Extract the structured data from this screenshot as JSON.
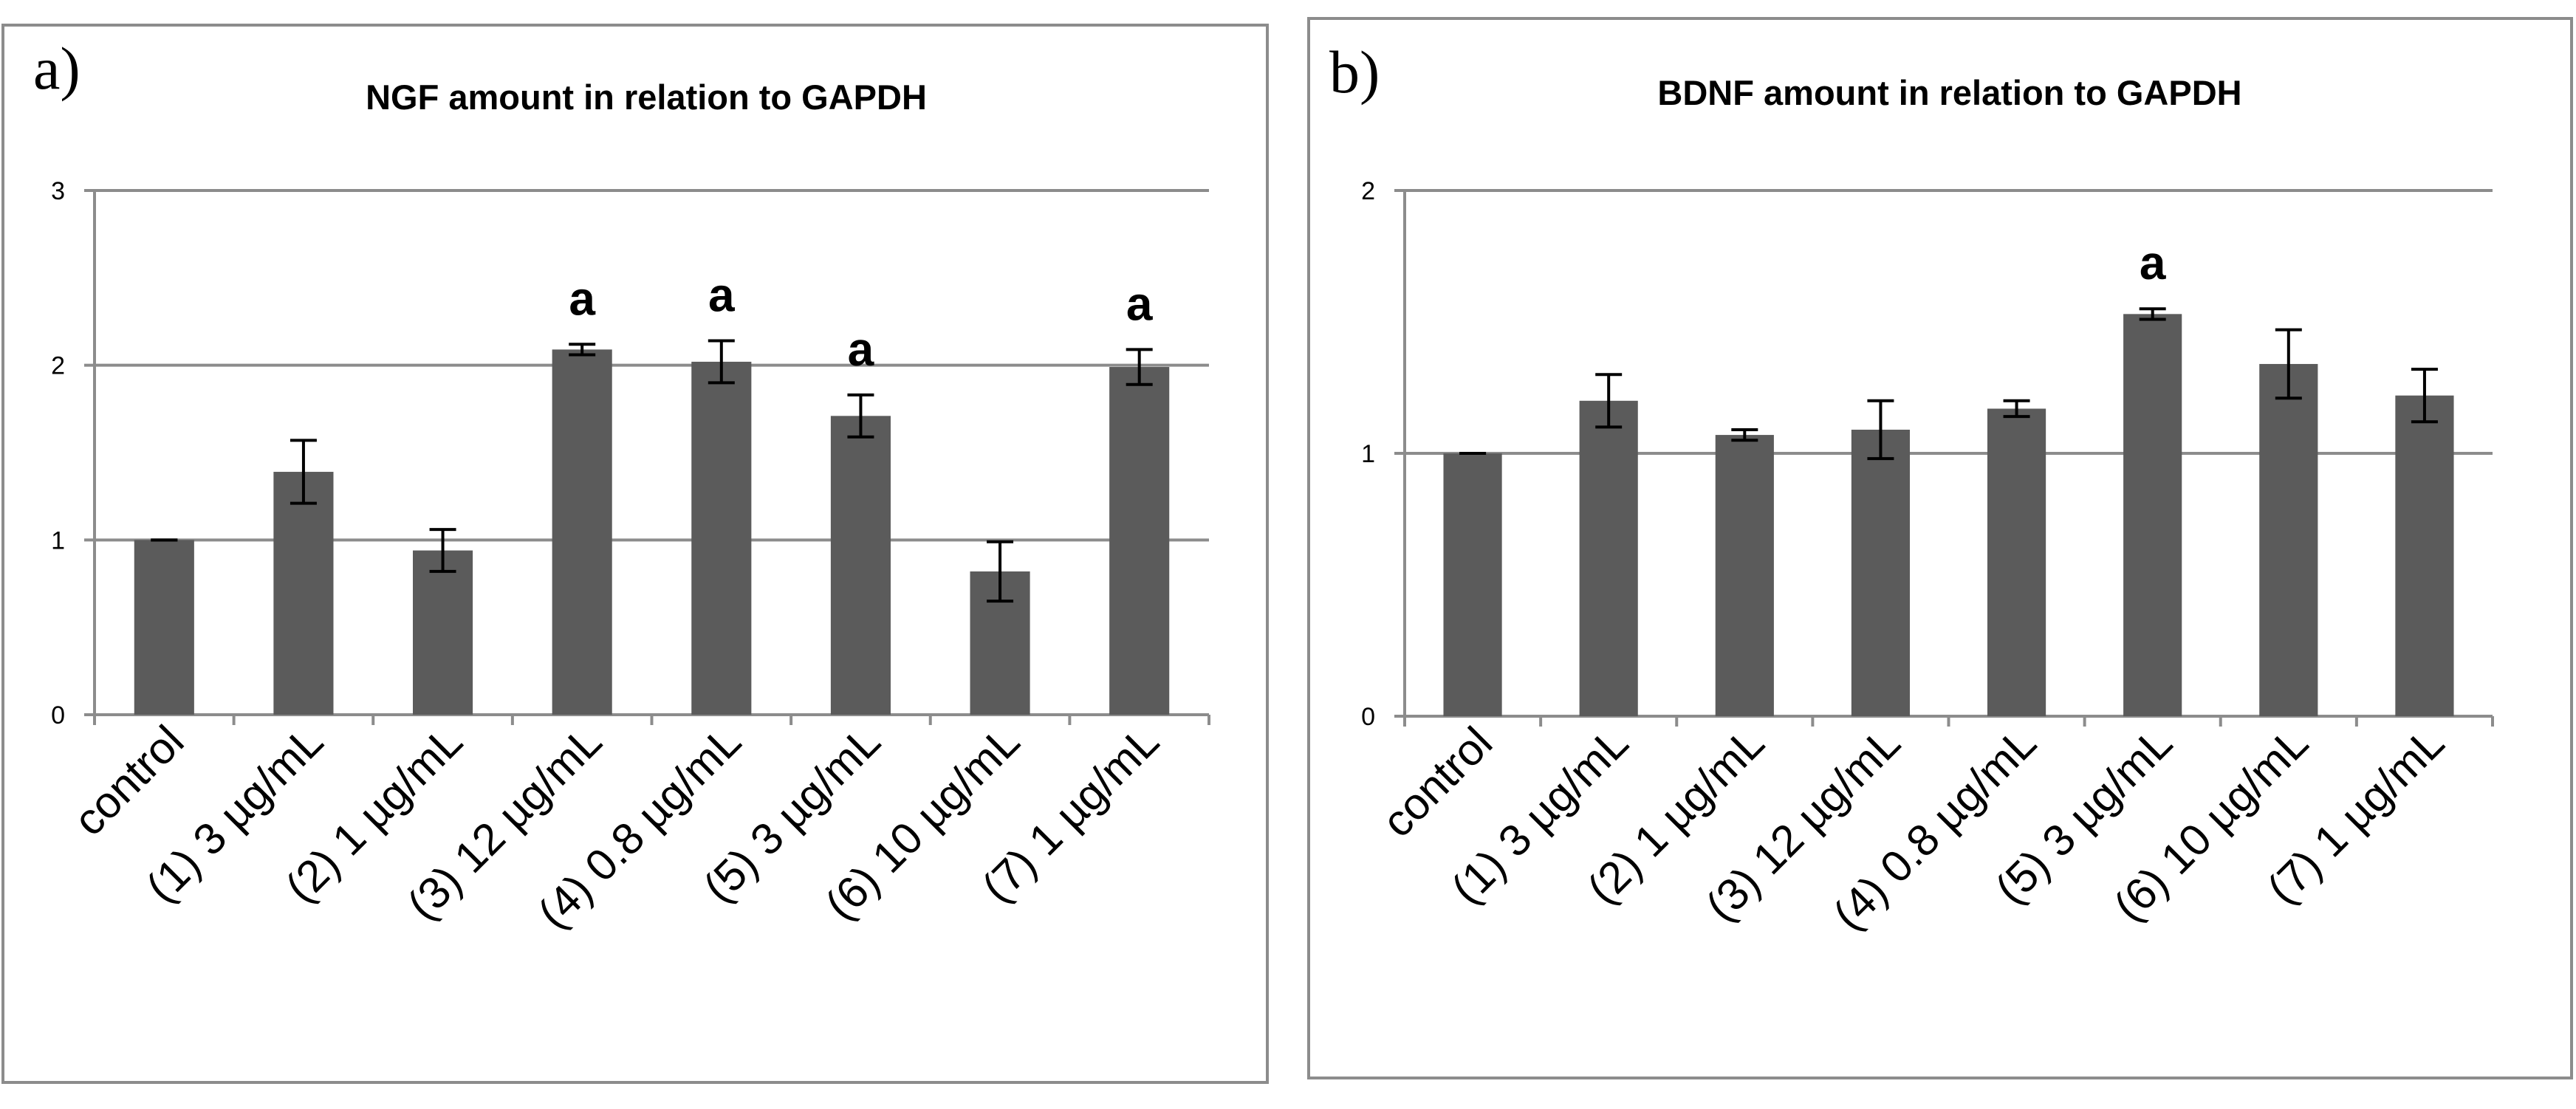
{
  "colors": {
    "bar": "#5b5b5b",
    "grid": "#8c8c8c",
    "frame": "#8c8c8c",
    "error_bar": "#000000"
  },
  "chart_data": [
    {
      "type": "bar",
      "panel_label": "a)",
      "title": "NGF amount in relation to GAPDH",
      "xlabel": "",
      "ylabel": "",
      "ylim": [
        0,
        3
      ],
      "yticks": [
        "0",
        "1",
        "2",
        "3"
      ],
      "categories": [
        "control",
        "(1) 3 µg/mL",
        "(2) 1 µg/mL",
        "(3) 12 µg/mL",
        "(4) 0.8 µg/mL",
        "(5) 3 µg/mL",
        "(6) 10 µg/mL",
        "(7) 1 µg/mL"
      ],
      "values": [
        1.0,
        1.39,
        0.94,
        2.09,
        2.02,
        1.71,
        0.82,
        1.99
      ],
      "errors": [
        0.0,
        0.18,
        0.12,
        0.03,
        0.12,
        0.12,
        0.17,
        0.1
      ],
      "annotations": [
        "",
        "",
        "",
        "a",
        "a",
        "a",
        "",
        "a"
      ]
    },
    {
      "type": "bar",
      "panel_label": "b)",
      "title": "BDNF amount  in relation to GAPDH",
      "xlabel": "",
      "ylabel": "",
      "ylim": [
        0,
        2
      ],
      "yticks": [
        "0",
        "1",
        "2"
      ],
      "categories": [
        "control",
        "(1) 3 µg/mL",
        "(2) 1 µg/mL",
        "(3) 12 µg/mL",
        "(4) 0.8 µg/mL",
        "(5) 3 µg/mL",
        "(6) 10 µg/mL",
        "(7) 1 µg/mL"
      ],
      "values": [
        1.0,
        1.2,
        1.07,
        1.09,
        1.17,
        1.53,
        1.34,
        1.22
      ],
      "errors": [
        0.0,
        0.1,
        0.02,
        0.11,
        0.03,
        0.02,
        0.13,
        0.1
      ],
      "annotations": [
        "",
        "",
        "",
        "",
        "",
        "a",
        "",
        ""
      ]
    }
  ]
}
